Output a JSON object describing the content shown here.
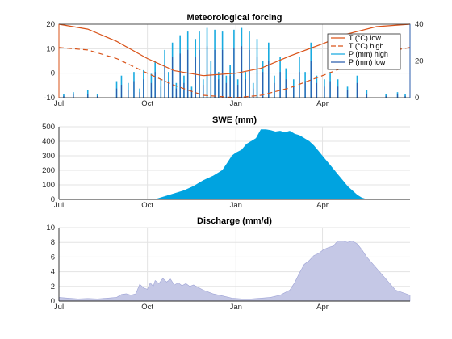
{
  "chart_data": [
    {
      "type": "line",
      "title": "Meteorological forcing",
      "xlabel": "",
      "x_ticks": [
        "Jul",
        "Oct",
        "Jan",
        "Apr"
      ],
      "x_range_days": [
        0,
        365
      ],
      "x_tick_days": [
        0,
        92,
        184,
        274
      ],
      "ylim_left": [
        -10,
        20
      ],
      "yticks_left": [
        -10,
        0,
        10,
        20
      ],
      "ylim_right": [
        0,
        40
      ],
      "yticks_right": [
        0,
        20,
        40
      ],
      "grid": true,
      "legend_position": "top-right",
      "colors": {
        "t_low": "#D95319",
        "t_high": "#D95319",
        "p_high": "#19ABE0",
        "p_low": "#2B5DAD",
        "axis_left": "#D95319",
        "axis_right": "#2B5DAD"
      },
      "series": [
        {
          "name": "T (°C) low",
          "axis": "left",
          "style": "solid",
          "x": [
            0,
            30,
            60,
            92,
            120,
            150,
            184,
            210,
            240,
            274,
            300,
            330,
            365
          ],
          "y": [
            20,
            18,
            13,
            6,
            1,
            -1,
            0,
            2,
            7,
            12,
            16,
            19,
            20
          ]
        },
        {
          "name": "T (°C) high",
          "axis": "left",
          "style": "dashed",
          "x": [
            0,
            30,
            60,
            92,
            120,
            150,
            184,
            210,
            240,
            274,
            300,
            330,
            365
          ],
          "y": [
            10.5,
            9.5,
            6,
            0,
            -5,
            -9,
            -10,
            -9,
            -6,
            -1,
            3,
            8,
            10.5
          ]
        },
        {
          "name": "P (mm) high",
          "axis": "right",
          "style": "bars",
          "x": [
            5,
            15,
            30,
            40,
            60,
            65,
            72,
            78,
            84,
            88,
            96,
            100,
            106,
            110,
            114,
            118,
            122,
            126,
            130,
            134,
            138,
            142,
            146,
            150,
            154,
            158,
            162,
            166,
            170,
            174,
            178,
            182,
            186,
            190,
            194,
            198,
            202,
            206,
            212,
            218,
            224,
            230,
            236,
            244,
            250,
            256,
            262,
            268,
            276,
            282,
            290,
            300,
            310,
            320,
            340,
            352,
            360
          ],
          "y": [
            2,
            3,
            4,
            2,
            9,
            12,
            8,
            14,
            5,
            15,
            13,
            20,
            10,
            26,
            14,
            30,
            8,
            34,
            12,
            36,
            6,
            32,
            36,
            10,
            38,
            20,
            37,
            14,
            36,
            12,
            18,
            37,
            10,
            38,
            14,
            36,
            8,
            32,
            20,
            30,
            12,
            22,
            16,
            10,
            22,
            14,
            30,
            12,
            10,
            14,
            10,
            6,
            12,
            4,
            2,
            3,
            2
          ]
        },
        {
          "name": "P (mm) low",
          "axis": "right",
          "style": "bars",
          "x": [
            5,
            15,
            30,
            40,
            60,
            65,
            72,
            78,
            84,
            88,
            96,
            100,
            106,
            110,
            114,
            118,
            122,
            126,
            130,
            134,
            138,
            142,
            146,
            150,
            154,
            158,
            162,
            166,
            170,
            174,
            178,
            182,
            186,
            190,
            194,
            198,
            202,
            206,
            212,
            218,
            224,
            230,
            236,
            244,
            250,
            256,
            262,
            268,
            276,
            282,
            290,
            300,
            310,
            320,
            340,
            352,
            360
          ],
          "y": [
            1,
            2,
            2,
            1,
            5,
            7,
            4,
            9,
            3,
            10,
            8,
            14,
            6,
            18,
            9,
            22,
            5,
            24,
            8,
            26,
            4,
            22,
            26,
            7,
            28,
            14,
            26,
            10,
            26,
            8,
            12,
            27,
            7,
            28,
            10,
            26,
            5,
            22,
            14,
            20,
            8,
            14,
            10,
            6,
            14,
            9,
            20,
            8,
            6,
            9,
            6,
            4,
            8,
            2,
            1,
            2,
            1
          ]
        }
      ]
    },
    {
      "type": "area",
      "title": "SWE (mm)",
      "x_ticks": [
        "Jul",
        "Oct",
        "Jan",
        "Apr"
      ],
      "x_range_days": [
        0,
        365
      ],
      "x_tick_days": [
        0,
        92,
        184,
        274
      ],
      "ylim": [
        0,
        500
      ],
      "yticks": [
        0,
        100,
        200,
        300,
        400,
        500
      ],
      "grid": true,
      "color": "#00A3E0",
      "x": [
        0,
        100,
        110,
        120,
        130,
        140,
        150,
        160,
        170,
        175,
        180,
        184,
        190,
        195,
        200,
        205,
        210,
        215,
        220,
        225,
        230,
        235,
        240,
        245,
        250,
        255,
        260,
        265,
        270,
        275,
        280,
        285,
        290,
        295,
        300,
        305,
        310,
        315,
        320,
        365
      ],
      "y": [
        0,
        0,
        20,
        40,
        60,
        90,
        130,
        160,
        200,
        250,
        300,
        320,
        340,
        380,
        400,
        420,
        480,
        480,
        475,
        465,
        470,
        460,
        470,
        450,
        440,
        420,
        400,
        370,
        330,
        290,
        250,
        210,
        170,
        130,
        90,
        60,
        30,
        10,
        0,
        0
      ]
    },
    {
      "type": "area",
      "title": "Discharge (mm/d)",
      "x_ticks": [
        "Jul",
        "Oct",
        "Jan",
        "Apr"
      ],
      "x_range_days": [
        0,
        365
      ],
      "x_tick_days": [
        0,
        92,
        184,
        274
      ],
      "ylim": [
        0,
        10
      ],
      "yticks": [
        0,
        2,
        4,
        6,
        8,
        10
      ],
      "grid": true,
      "color": "#C5C8E6",
      "x": [
        0,
        10,
        20,
        30,
        40,
        50,
        60,
        65,
        70,
        75,
        80,
        84,
        88,
        92,
        95,
        98,
        100,
        104,
        108,
        112,
        116,
        120,
        124,
        128,
        132,
        136,
        140,
        150,
        160,
        170,
        180,
        190,
        200,
        210,
        220,
        230,
        240,
        245,
        250,
        255,
        260,
        265,
        270,
        275,
        280,
        285,
        290,
        295,
        300,
        305,
        310,
        315,
        320,
        330,
        340,
        350,
        365
      ],
      "y": [
        0.5,
        0.4,
        0.3,
        0.35,
        0.3,
        0.4,
        0.5,
        0.9,
        1.0,
        0.8,
        1.0,
        2.3,
        1.8,
        1.6,
        2.5,
        2.0,
        2.8,
        2.4,
        3.1,
        2.6,
        3.0,
        2.2,
        2.5,
        2.1,
        2.4,
        2.0,
        2.2,
        1.5,
        1.0,
        0.7,
        0.4,
        0.3,
        0.3,
        0.4,
        0.5,
        0.8,
        1.5,
        2.5,
        3.8,
        5.0,
        5.5,
        6.2,
        6.5,
        7.0,
        7.3,
        7.5,
        8.2,
        8.2,
        8.0,
        8.2,
        7.8,
        7.0,
        6.0,
        4.5,
        3.0,
        1.5,
        0.8
      ]
    }
  ]
}
